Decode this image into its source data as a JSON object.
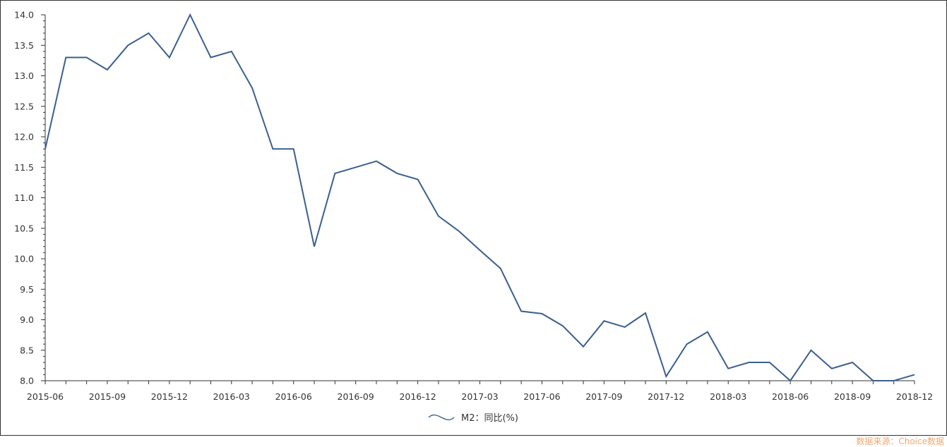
{
  "chart_data": {
    "type": "line",
    "title": "",
    "xlabel": "",
    "ylabel": "",
    "ylim": [
      8.0,
      14.0
    ],
    "grid": false,
    "legend_position": "bottom-center",
    "x_tick_labels": [
      "2015-06",
      "2015-09",
      "2015-12",
      "2016-03",
      "2016-06",
      "2016-09",
      "2016-12",
      "2017-03",
      "2017-06",
      "2017-09",
      "2017-12",
      "2018-03",
      "2018-06",
      "2018-09",
      "2018-12"
    ],
    "y_tick_labels": [
      "8.0",
      "8.5",
      "9.0",
      "9.5",
      "10.0",
      "10.5",
      "11.0",
      "11.5",
      "12.0",
      "12.5",
      "13.0",
      "13.5",
      "14.0"
    ],
    "x": [
      "2015-06",
      "2015-07",
      "2015-08",
      "2015-09",
      "2015-10",
      "2015-11",
      "2015-12",
      "2016-01",
      "2016-02",
      "2016-03",
      "2016-04",
      "2016-05",
      "2016-06",
      "2016-07",
      "2016-08",
      "2016-09",
      "2016-10",
      "2016-11",
      "2016-12",
      "2017-01",
      "2017-02",
      "2017-03",
      "2017-04",
      "2017-05",
      "2017-06",
      "2017-07",
      "2017-08",
      "2017-09",
      "2017-10",
      "2017-11",
      "2017-12",
      "2018-01",
      "2018-02",
      "2018-03",
      "2018-04",
      "2018-05",
      "2018-06",
      "2018-07",
      "2018-08",
      "2018-09",
      "2018-10",
      "2018-11",
      "2018-12"
    ],
    "series": [
      {
        "name": "M2：同比(%)",
        "color": "#3a5f8f",
        "values": [
          11.8,
          13.3,
          13.3,
          13.1,
          13.5,
          13.7,
          13.3,
          14.0,
          13.3,
          13.4,
          12.8,
          11.8,
          11.8,
          10.2,
          11.4,
          11.5,
          11.6,
          11.4,
          11.3,
          10.7,
          10.45,
          10.14,
          9.84,
          9.14,
          9.1,
          8.9,
          8.56,
          8.98,
          8.88,
          9.11,
          8.07,
          8.6,
          8.8,
          8.2,
          8.3,
          8.3,
          8.0,
          8.5,
          8.2,
          8.3,
          8.0,
          8.0,
          8.1
        ]
      }
    ]
  },
  "source_note": "数据来源：Choice数据"
}
